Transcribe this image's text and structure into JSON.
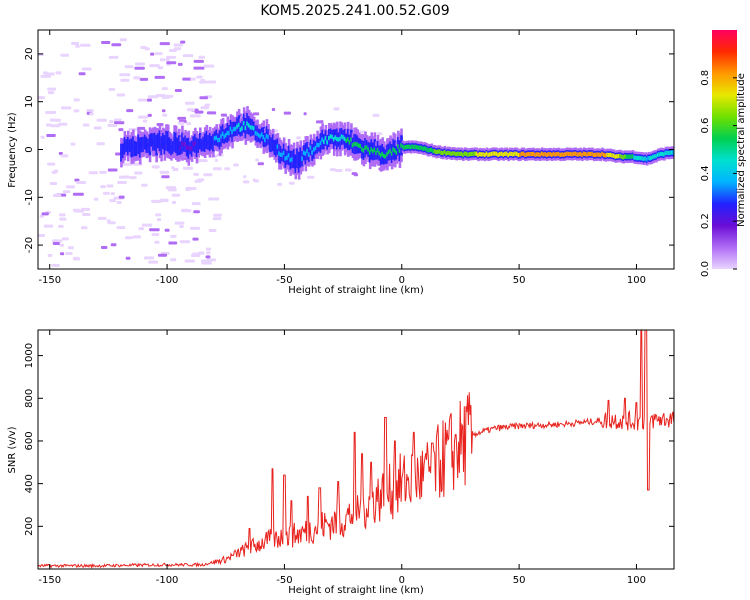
{
  "title": "KOM5.2025.241.00.52.G09",
  "chart_data": [
    {
      "type": "heatmap",
      "xlabel": "Height of straight line (km)",
      "ylabel": "Frequency (Hz)",
      "xlim": [
        -155,
        116
      ],
      "ylim": [
        -25,
        25
      ],
      "x_ticks": [
        -150,
        -100,
        -50,
        0,
        50,
        100
      ],
      "y_ticks": [
        -20,
        -10,
        0,
        10,
        20
      ],
      "colorbar": {
        "label": "Normalized spectral amplitude",
        "range": [
          0,
          1
        ],
        "ticks": [
          "0.0",
          "0.2",
          "0.4",
          "0.6",
          "0.8"
        ],
        "colors": [
          "#e9d4ff",
          "#b06cf5",
          "#6a0dd6",
          "#2222ff",
          "#00b4ff",
          "#00e0d0",
          "#00d050",
          "#70e000",
          "#e8e800",
          "#ff9900",
          "#ff2a00",
          "#ff0060"
        ]
      },
      "ridge": [
        {
          "x": -120,
          "f": 0,
          "a": 0.25
        },
        {
          "x": -112,
          "f": 1,
          "a": 0.3
        },
        {
          "x": -105,
          "f": 1.5,
          "a": 0.3
        },
        {
          "x": -98,
          "f": 1,
          "a": 0.25
        },
        {
          "x": -92,
          "f": 0.5,
          "a": 0.2
        },
        {
          "x": -85,
          "f": 1.5,
          "a": 0.25
        },
        {
          "x": -78,
          "f": 2.5,
          "a": 0.35
        },
        {
          "x": -72,
          "f": 4.5,
          "a": 0.4
        },
        {
          "x": -67,
          "f": 5,
          "a": 0.45
        },
        {
          "x": -62,
          "f": 3.5,
          "a": 0.4
        },
        {
          "x": -56,
          "f": 1.5,
          "a": 0.3
        },
        {
          "x": -50,
          "f": -1.5,
          "a": 0.35
        },
        {
          "x": -45,
          "f": -2.5,
          "a": 0.3
        },
        {
          "x": -40,
          "f": -0.5,
          "a": 0.35
        },
        {
          "x": -35,
          "f": 1.5,
          "a": 0.4
        },
        {
          "x": -30,
          "f": 2.5,
          "a": 0.45
        },
        {
          "x": -24,
          "f": 2,
          "a": 0.5
        },
        {
          "x": -18,
          "f": 0.5,
          "a": 0.5
        },
        {
          "x": -12,
          "f": -0.5,
          "a": 0.55
        },
        {
          "x": -6,
          "f": -1,
          "a": 0.55
        },
        {
          "x": 0,
          "f": 0.5,
          "a": 0.55
        },
        {
          "x": 6,
          "f": 0.5,
          "a": 0.55
        },
        {
          "x": 15,
          "f": -0.5,
          "a": 0.6
        },
        {
          "x": 25,
          "f": -1,
          "a": 0.65
        },
        {
          "x": 35,
          "f": -1,
          "a": 0.7
        },
        {
          "x": 45,
          "f": -1,
          "a": 0.75
        },
        {
          "x": 55,
          "f": -1,
          "a": 0.8
        },
        {
          "x": 65,
          "f": -1,
          "a": 0.85
        },
        {
          "x": 75,
          "f": -1,
          "a": 0.85
        },
        {
          "x": 85,
          "f": -1,
          "a": 0.8
        },
        {
          "x": 92,
          "f": -1.5,
          "a": 0.7
        },
        {
          "x": 98,
          "f": -1.5,
          "a": 0.5
        },
        {
          "x": 104,
          "f": -2,
          "a": 0.4
        },
        {
          "x": 110,
          "f": -1,
          "a": 0.45
        },
        {
          "x": 116,
          "f": -0.5,
          "a": 0.4
        }
      ]
    },
    {
      "type": "line",
      "xlabel": "Height of straight line (km)",
      "ylabel": "SNR (v/v)",
      "xlim": [
        -155,
        116
      ],
      "ylim": [
        0,
        1120
      ],
      "x_ticks": [
        -150,
        -100,
        -50,
        0,
        50,
        100
      ],
      "y_ticks": [
        200,
        400,
        600,
        800,
        1000
      ],
      "color": "#e8221d",
      "trend": [
        {
          "x": -155,
          "y": 15
        },
        {
          "x": -130,
          "y": 15
        },
        {
          "x": -100,
          "y": 20
        },
        {
          "x": -85,
          "y": 20
        },
        {
          "x": -75,
          "y": 45
        },
        {
          "x": -65,
          "y": 100
        },
        {
          "x": -55,
          "y": 140
        },
        {
          "x": -45,
          "y": 160
        },
        {
          "x": -35,
          "y": 200
        },
        {
          "x": -25,
          "y": 230
        },
        {
          "x": -15,
          "y": 300
        },
        {
          "x": -10,
          "y": 340
        },
        {
          "x": -5,
          "y": 360
        },
        {
          "x": 0,
          "y": 400
        },
        {
          "x": 10,
          "y": 440
        },
        {
          "x": 20,
          "y": 540
        },
        {
          "x": 30,
          "y": 630
        },
        {
          "x": 40,
          "y": 660
        },
        {
          "x": 50,
          "y": 670
        },
        {
          "x": 60,
          "y": 675
        },
        {
          "x": 70,
          "y": 680
        },
        {
          "x": 80,
          "y": 690
        },
        {
          "x": 90,
          "y": 700
        },
        {
          "x": 100,
          "y": 690
        },
        {
          "x": 108,
          "y": 700
        },
        {
          "x": 116,
          "y": 705
        }
      ],
      "spikes": [
        {
          "x": -65,
          "y": 190
        },
        {
          "x": -55,
          "y": 470
        },
        {
          "x": -50,
          "y": 440
        },
        {
          "x": -47,
          "y": 320
        },
        {
          "x": -40,
          "y": 340
        },
        {
          "x": -35,
          "y": 380
        },
        {
          "x": -27,
          "y": 410
        },
        {
          "x": -20,
          "y": 640
        },
        {
          "x": -17,
          "y": 540
        },
        {
          "x": -13,
          "y": 500
        },
        {
          "x": -7,
          "y": 710
        },
        {
          "x": -3,
          "y": 600
        },
        {
          "x": 5,
          "y": 640
        },
        {
          "x": 13,
          "y": 590
        },
        {
          "x": 23,
          "y": 630
        },
        {
          "x": 88,
          "y": 790
        },
        {
          "x": 95,
          "y": 800
        },
        {
          "x": 100,
          "y": 780
        },
        {
          "x": 102,
          "y": 1120
        },
        {
          "x": 104,
          "y": 1120
        },
        {
          "x": 105,
          "y": 370
        }
      ]
    }
  ]
}
